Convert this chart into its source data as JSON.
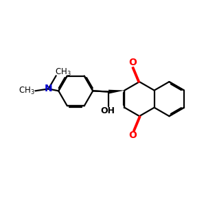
{
  "background_color": "#ffffff",
  "bond_color": "#000000",
  "oxygen_color": "#ff0000",
  "nitrogen_color": "#0000cc",
  "bond_width": 1.6,
  "dbo": 0.055,
  "figsize": [
    3.0,
    3.0
  ],
  "dpi": 100,
  "xlim": [
    0,
    10
  ],
  "ylim": [
    0,
    10
  ]
}
